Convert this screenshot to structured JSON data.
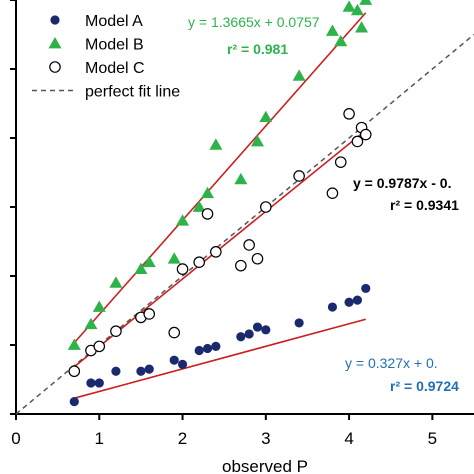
{
  "chart_data": {
    "type": "scatter",
    "xlabel": "observed P",
    "ylabel": "",
    "xlim": [
      0,
      5.5
    ],
    "ylim": [
      0,
      6
    ],
    "x_ticks": [
      "0",
      "1",
      "2",
      "3",
      "4",
      "5"
    ],
    "y_ticks_count": 6,
    "legend_position": "top-left",
    "series": [
      {
        "name": "Model A",
        "marker": "filled-circle",
        "color": "#1a2a6c",
        "x": [
          0.7,
          0.9,
          1.0,
          1.2,
          1.5,
          1.6,
          1.9,
          2.0,
          2.2,
          2.3,
          2.4,
          2.7,
          2.8,
          2.9,
          3.0,
          3.4,
          3.8,
          4.0,
          4.1,
          4.2
        ],
        "y": [
          0.18,
          0.45,
          0.45,
          0.62,
          0.62,
          0.65,
          0.78,
          0.72,
          0.92,
          0.95,
          0.98,
          1.12,
          1.16,
          1.26,
          1.22,
          1.32,
          1.55,
          1.62,
          1.65,
          1.82
        ]
      },
      {
        "name": "Model B",
        "marker": "filled-triangle",
        "color": "#2db34a",
        "x": [
          0.7,
          0.9,
          1.0,
          1.2,
          1.5,
          1.6,
          1.9,
          2.0,
          2.2,
          2.3,
          2.4,
          2.7,
          2.9,
          3.0,
          3.4,
          3.8,
          3.9,
          4.0,
          4.1,
          4.15,
          4.2
        ],
        "y": [
          1.0,
          1.3,
          1.55,
          1.9,
          2.1,
          2.2,
          2.25,
          2.8,
          3.0,
          3.2,
          3.9,
          3.4,
          3.95,
          4.3,
          4.9,
          5.55,
          5.4,
          5.9,
          5.85,
          5.6,
          6.0
        ]
      },
      {
        "name": "Model C",
        "marker": "open-circle",
        "color": "#000000",
        "x": [
          0.7,
          0.9,
          1.0,
          1.2,
          1.5,
          1.6,
          1.9,
          2.0,
          2.2,
          2.3,
          2.4,
          2.7,
          2.8,
          2.9,
          3.0,
          3.4,
          3.8,
          3.9,
          4.0,
          4.1,
          4.15,
          4.2
        ],
        "y": [
          0.62,
          0.92,
          0.98,
          1.2,
          1.4,
          1.45,
          1.18,
          2.1,
          2.2,
          2.9,
          2.35,
          2.15,
          2.45,
          2.25,
          3.0,
          3.45,
          3.2,
          3.65,
          4.35,
          3.95,
          4.15,
          4.05
        ]
      }
    ],
    "fit_lines": [
      {
        "series": "Model A",
        "slope": 0.327,
        "intercept": 0.0,
        "x_range": [
          0.7,
          4.2
        ],
        "color": "#cc1f1f"
      },
      {
        "series": "Model B",
        "slope": 1.3665,
        "intercept": 0.0757,
        "x_range": [
          0.7,
          4.2
        ],
        "color": "#cc1f1f"
      },
      {
        "series": "Model C",
        "slope": 0.9787,
        "intercept": 0.0,
        "x_range": [
          0.7,
          4.2
        ],
        "color": "#cc1f1f"
      }
    ],
    "perfect_fit_line": {
      "name": "perfect fit line",
      "color": "#555555"
    },
    "annotations": [
      {
        "key": "b_eq",
        "text": "y = 1.3665x + 0.0757",
        "color": "#2db34a"
      },
      {
        "key": "b_r2",
        "text": "r²  = 0.981",
        "color": "#2db34a"
      },
      {
        "key": "c_eq",
        "text": "y = 0.9787x - 0.",
        "color": "#000000"
      },
      {
        "key": "c_r2",
        "text": "r² = 0.9341",
        "color": "#000000"
      },
      {
        "key": "a_eq",
        "text": "y = 0.327x + 0.",
        "color": "#1f6fb5"
      },
      {
        "key": "a_r2",
        "text": "r²  = 0.9724",
        "color": "#1f6fb5"
      }
    ]
  }
}
